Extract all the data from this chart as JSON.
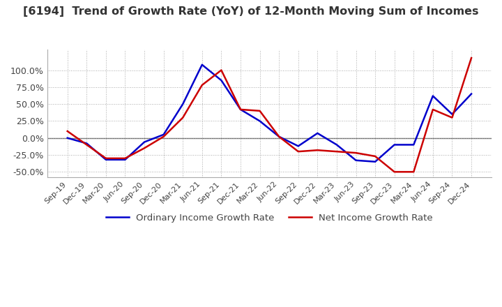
{
  "title": "[6194]  Trend of Growth Rate (YoY) of 12-Month Moving Sum of Incomes",
  "title_fontsize": 11.5,
  "background_color": "#ffffff",
  "grid_color": "#aaaaaa",
  "ordinary_color": "#0000cc",
  "net_color": "#cc0000",
  "legend_ordinary": "Ordinary Income Growth Rate",
  "legend_net": "Net Income Growth Rate",
  "ylim": [
    -0.58,
    1.3
  ],
  "yticks": [
    -0.5,
    -0.25,
    0.0,
    0.25,
    0.5,
    0.75,
    1.0
  ],
  "ytick_labels": [
    "-50.0%",
    "-25.0%",
    "0.0%",
    "25.0%",
    "50.0%",
    "75.0%",
    "100.0%"
  ],
  "dates": [
    "Sep-19",
    "Dec-19",
    "Mar-20",
    "Jun-20",
    "Sep-20",
    "Dec-20",
    "Mar-21",
    "Jun-21",
    "Sep-21",
    "Dec-21",
    "Mar-22",
    "Jun-22",
    "Sep-22",
    "Dec-22",
    "Mar-23",
    "Jun-23",
    "Sep-23",
    "Dec-23",
    "Mar-24",
    "Jun-24",
    "Sep-24",
    "Dec-24"
  ],
  "ordinary_values": [
    0.0,
    -0.08,
    -0.32,
    -0.32,
    -0.06,
    0.05,
    0.5,
    1.08,
    0.85,
    0.42,
    0.25,
    0.02,
    -0.12,
    0.07,
    -0.1,
    -0.33,
    -0.35,
    -0.1,
    -0.1,
    0.62,
    0.35,
    0.65
  ],
  "net_values": [
    0.1,
    -0.1,
    -0.3,
    -0.3,
    -0.15,
    0.02,
    0.3,
    0.78,
    1.0,
    0.42,
    0.4,
    0.02,
    -0.2,
    -0.18,
    -0.2,
    -0.22,
    -0.27,
    -0.5,
    -0.5,
    0.42,
    0.3,
    1.18
  ]
}
